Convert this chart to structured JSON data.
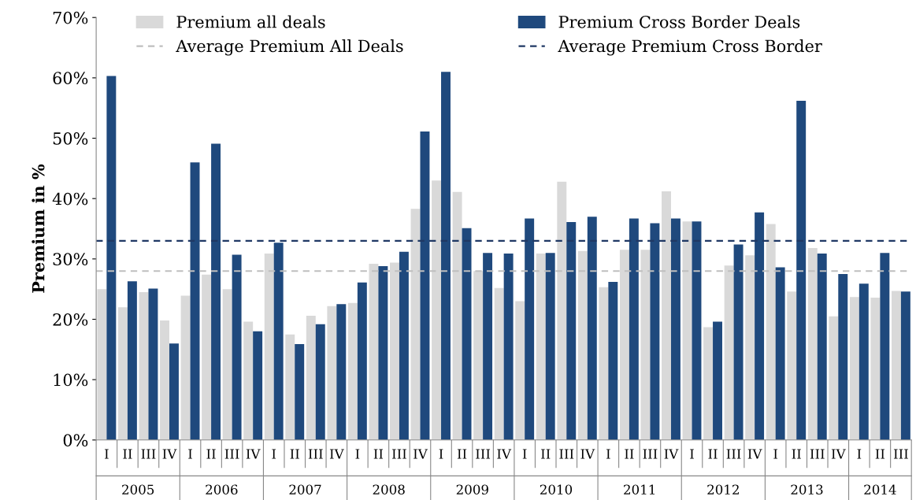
{
  "chart_data": {
    "type": "bar",
    "ylabel": "Premium in %",
    "categories": [
      "I",
      "II",
      "III",
      "IV",
      "I",
      "II",
      "III",
      "IV",
      "I",
      "II",
      "III",
      "IV",
      "I",
      "II",
      "III",
      "IV",
      "I",
      "II",
      "III",
      "IV",
      "I",
      "II",
      "III",
      "IV",
      "I",
      "II",
      "III",
      "IV",
      "I",
      "II",
      "III",
      "IV",
      "I",
      "II",
      "III",
      "IV",
      "I",
      "II",
      "III"
    ],
    "series": [
      {
        "name": "Premium all deals",
        "color": "#d9d9d9",
        "values": [
          25.0,
          22.0,
          24.5,
          19.8,
          23.9,
          27.4,
          25.0,
          19.6,
          30.9,
          17.5,
          20.6,
          22.2,
          22.7,
          29.2,
          29.4,
          38.3,
          43.0,
          41.1,
          28.0,
          25.2,
          23.0,
          30.9,
          42.8,
          31.3,
          25.3,
          31.5,
          31.5,
          41.2,
          36.2,
          18.7,
          28.9,
          30.6,
          35.8,
          24.6,
          31.8,
          20.5,
          23.7,
          23.6,
          24.7
        ]
      },
      {
        "name": "Premium Cross Border Deals",
        "color": "#1f497d",
        "values": [
          60.3,
          26.3,
          25.1,
          16.0,
          46.0,
          49.1,
          30.7,
          18.0,
          32.7,
          15.9,
          19.2,
          22.5,
          26.1,
          28.8,
          31.2,
          51.1,
          61.0,
          35.1,
          31.0,
          30.9,
          36.7,
          31.0,
          36.1,
          37.0,
          26.2,
          36.7,
          35.9,
          36.7,
          36.2,
          19.6,
          32.4,
          37.7,
          28.6,
          56.2,
          30.9,
          27.5,
          25.9,
          31.0,
          24.6
        ]
      }
    ],
    "ref_lines": [
      {
        "axis": "y",
        "value": 28,
        "label": "Average Premium All Deals",
        "color": "#bfbfbf",
        "line_style": "dashed"
      },
      {
        "axis": "y",
        "value": 33,
        "label": "Average Premium Cross Border",
        "color": "#1f3864",
        "line_style": "dashed"
      }
    ],
    "annotations": [
      "2005",
      "2006",
      "2007",
      "2008",
      "2009",
      "2010",
      "2011",
      "2012",
      "2013",
      "2014"
    ],
    "ylim": [
      0,
      70
    ],
    "yticks": [
      {
        "value": 0,
        "label": "0%"
      },
      {
        "value": 10,
        "label": "10%"
      },
      {
        "value": 20,
        "label": "20%"
      },
      {
        "value": 30,
        "label": "30%"
      },
      {
        "value": 40,
        "label": "40%"
      },
      {
        "value": 50,
        "label": "50%"
      },
      {
        "value": 60,
        "label": "60%"
      },
      {
        "value": 70,
        "label": "70%"
      }
    ],
    "grid": false,
    "legend": "top"
  }
}
